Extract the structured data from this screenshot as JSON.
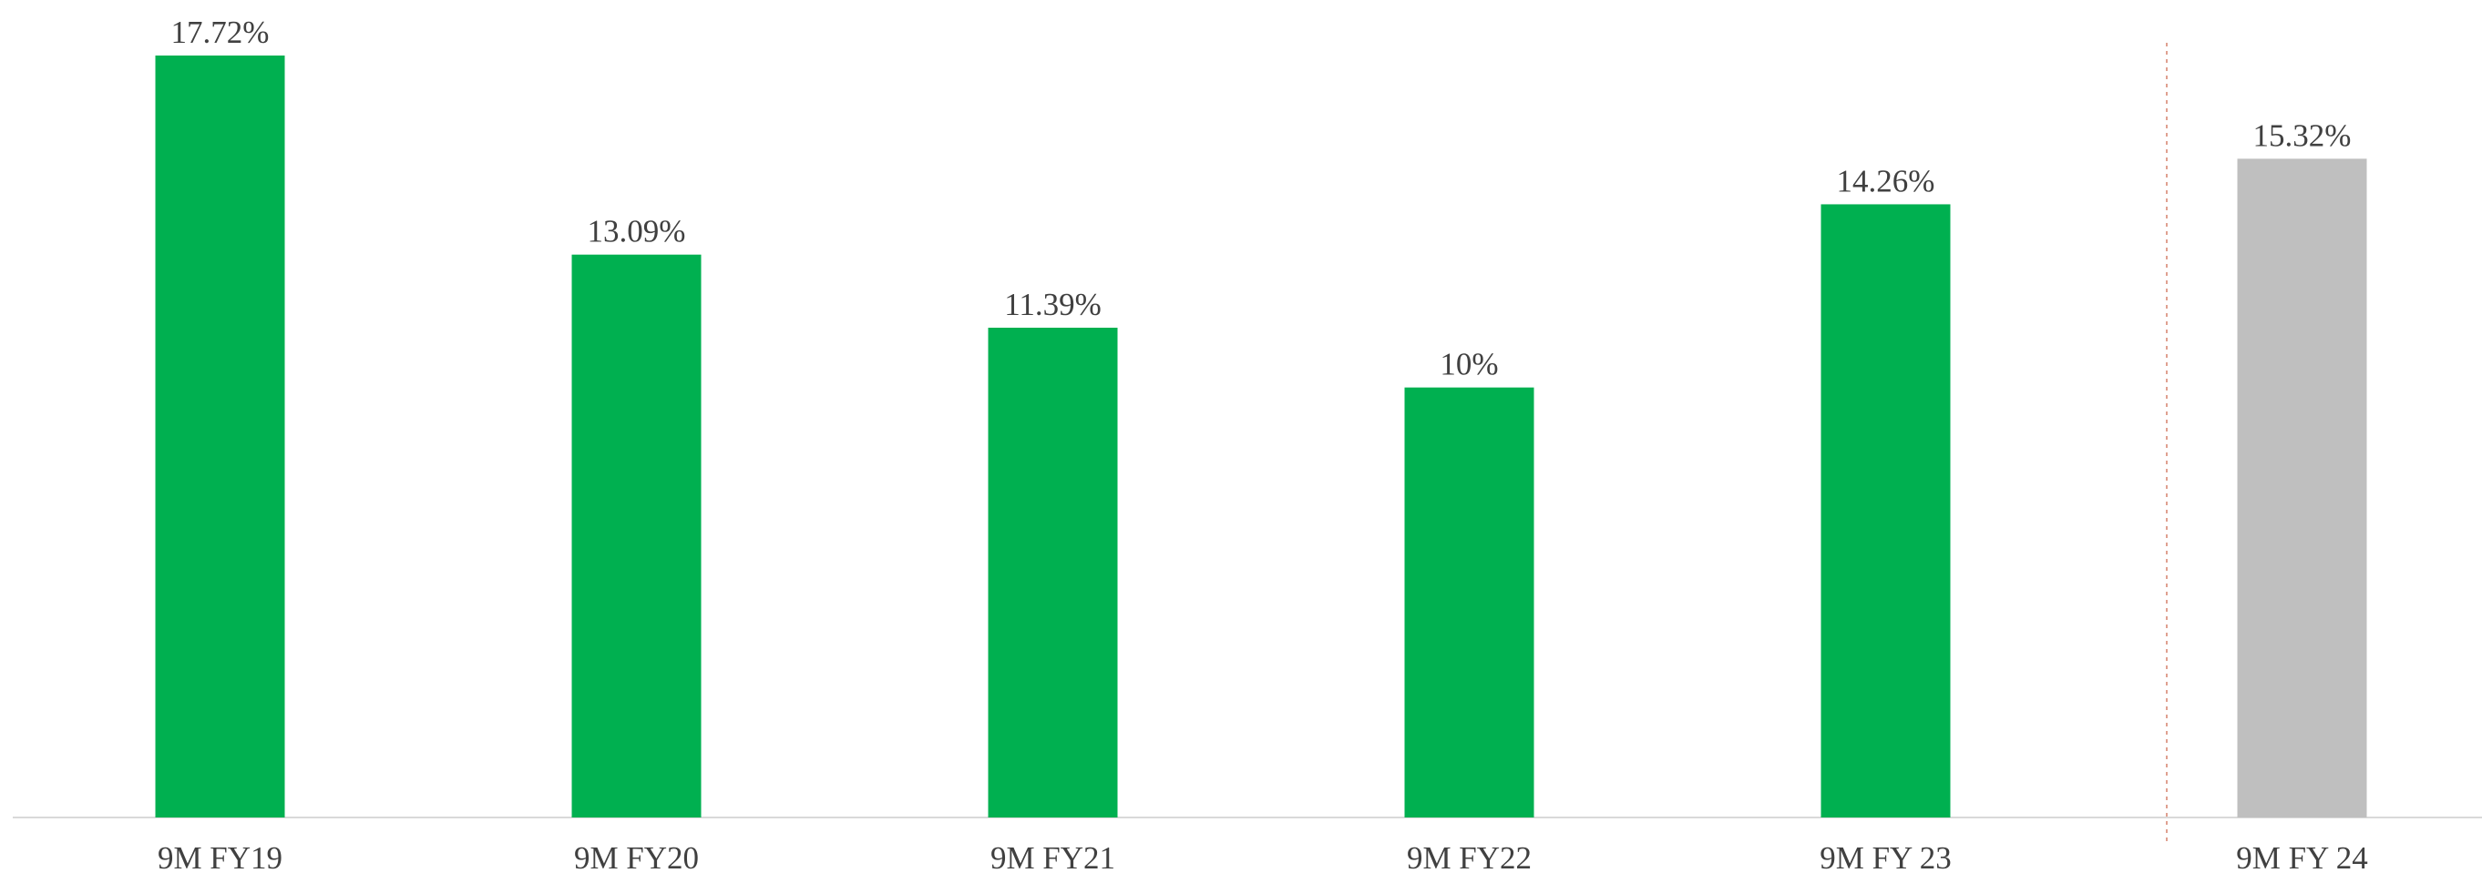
{
  "chart_data": {
    "type": "bar",
    "categories": [
      "9M FY19",
      "9M FY20",
      "9M FY21",
      "9M FY22",
      "9M FY 23",
      "9M FY 24"
    ],
    "values": [
      17.72,
      13.09,
      11.39,
      10,
      14.26,
      15.32
    ],
    "value_labels": [
      "17.72%",
      "13.09%",
      "11.39%",
      "10%",
      "14.26%",
      "15.32%"
    ],
    "colors": [
      "#00b050",
      "#00b050",
      "#00b050",
      "#00b050",
      "#00b050",
      "#bfbfbf"
    ]
  }
}
